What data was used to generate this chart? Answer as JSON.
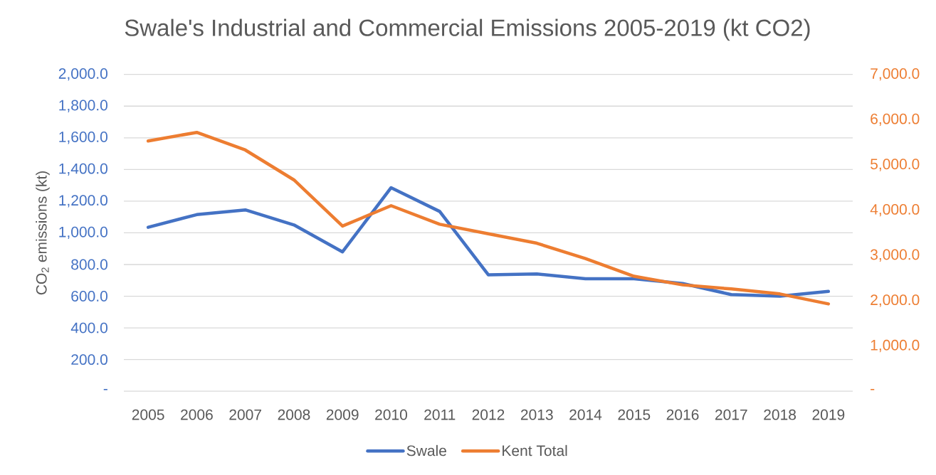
{
  "chart_data": {
    "type": "line",
    "title": "Swale's Industrial and Commercial Emissions 2005-2019 (kt CO2)",
    "ylabel": "CO$_{2}$ emissions (kt)",
    "categories": [
      "2005",
      "2006",
      "2007",
      "2008",
      "2009",
      "2010",
      "2011",
      "2012",
      "2013",
      "2014",
      "2015",
      "2016",
      "2017",
      "2018",
      "2019"
    ],
    "series": [
      {
        "name": "Swale",
        "color": "#4472c4",
        "values": [
          1035,
          1115,
          1145,
          1050,
          880,
          1285,
          1135,
          735,
          740,
          710,
          710,
          680,
          610,
          600,
          630
        ]
      },
      {
        "name": "Kent Total",
        "color": "#ed7d31",
        "axis": "y2",
        "values": [
          5530,
          5720,
          5330,
          4670,
          3650,
          4100,
          3690,
          3480,
          3270,
          2930,
          2540,
          2350,
          2260,
          2150,
          1930
        ]
      }
    ],
    "ylim": [
      0,
      2000
    ],
    "yticks": [
      {
        "value": 0,
        "label": "-"
      },
      {
        "value": 200,
        "label": "200.0"
      },
      {
        "value": 400,
        "label": "400.0"
      },
      {
        "value": 600,
        "label": "600.0"
      },
      {
        "value": 800,
        "label": "800.0"
      },
      {
        "value": 1000,
        "label": "1,000.0"
      },
      {
        "value": 1200,
        "label": "1,200.0"
      },
      {
        "value": 1400,
        "label": "1,400.0"
      },
      {
        "value": 1600,
        "label": "1,600.0"
      },
      {
        "value": 1800,
        "label": "1,800.0"
      },
      {
        "value": 2000,
        "label": "2,000.0"
      }
    ],
    "y2lim": [
      0,
      7000
    ],
    "y2ticks": [
      {
        "value": 0,
        "label": "-"
      },
      {
        "value": 1000,
        "label": "1,000.0"
      },
      {
        "value": 2000,
        "label": "2,000.0"
      },
      {
        "value": 3000,
        "label": "3,000.0"
      },
      {
        "value": 4000,
        "label": "4,000.0"
      },
      {
        "value": 5000,
        "label": "5,000.0"
      },
      {
        "value": 6000,
        "label": "6,000.0"
      },
      {
        "value": 7000,
        "label": "7,000.0"
      }
    ],
    "grid": "y",
    "legend": "bottom",
    "marker": "none",
    "line_style": "solid"
  }
}
